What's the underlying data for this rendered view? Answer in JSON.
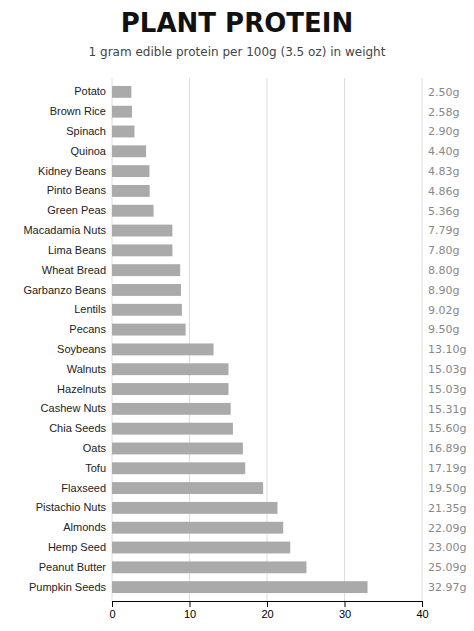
{
  "chart_data": {
    "type": "bar",
    "orientation": "horizontal",
    "title": "PLANT PROTEIN",
    "subtitle": "1 gram edible protein per 100g (3.5 oz) in weight",
    "categories": [
      "Potato",
      "Brown Rice",
      "Spinach",
      "Quinoa",
      "Kidney Beans",
      "Pinto Beans",
      "Green Peas",
      "Macadamia Nuts",
      "Lima Beans",
      "Wheat Bread",
      "Garbanzo Beans",
      "Lentils",
      "Pecans",
      "Soybeans",
      "Walnuts",
      "Hazelnuts",
      "Cashew Nuts",
      "Chia Seeds",
      "Oats",
      "Tofu",
      "Flaxseed",
      "Pistachio Nuts",
      "Almonds",
      "Hemp Seed",
      "Peanut Butter",
      "Pumpkin Seeds"
    ],
    "values": [
      2.5,
      2.58,
      2.9,
      4.4,
      4.83,
      4.86,
      5.36,
      7.79,
      7.8,
      8.8,
      8.9,
      9.02,
      9.5,
      13.1,
      15.03,
      15.03,
      15.31,
      15.6,
      16.89,
      17.19,
      19.5,
      21.35,
      22.09,
      23.0,
      25.09,
      32.97
    ],
    "value_labels": [
      "2.50g",
      "2.58g",
      "2.90g",
      "4.40g",
      "4.83g",
      "4.86g",
      "5.36g",
      "7.79g",
      "7.80g",
      "8.80g",
      "8.90g",
      "9.02g",
      "9.50g",
      "13.10g",
      "15.03g",
      "15.03g",
      "15.31g",
      "15.60g",
      "16.89g",
      "17.19g",
      "19.50g",
      "21.35g",
      "22.09g",
      "23.00g",
      "25.09g",
      "32.97g"
    ],
    "data_labels": true,
    "color": "#aaaaaa",
    "xlim": [
      0,
      40
    ],
    "xticks": [
      0,
      10,
      20,
      30,
      40
    ],
    "grid": true
  }
}
